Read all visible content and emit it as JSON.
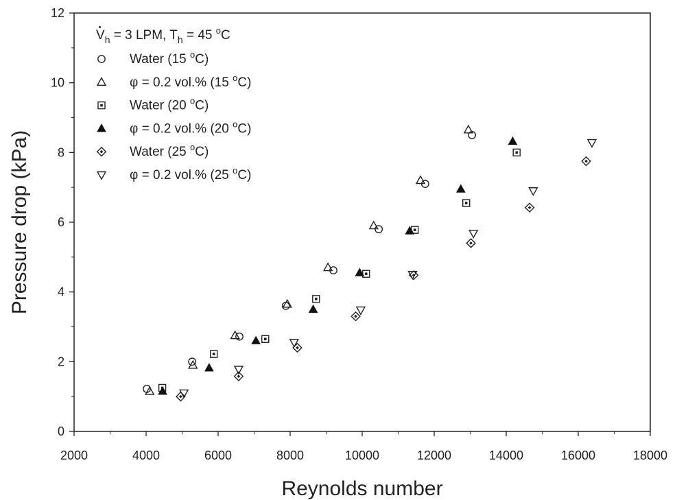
{
  "chart_data": {
    "type": "scatter",
    "xlabel": "Reynolds number",
    "ylabel": "Pressure drop (kPa)",
    "xlim": [
      2000,
      18000
    ],
    "ylim": [
      0,
      12
    ],
    "xticks": [
      2000,
      4000,
      6000,
      8000,
      10000,
      12000,
      14000,
      16000,
      18000
    ],
    "yticks": [
      0,
      2,
      4,
      6,
      8,
      10,
      12
    ],
    "xtick_labels": [
      "2000",
      "4000",
      "6000",
      "8000",
      "10000",
      "12000",
      "14000",
      "16000",
      "18000"
    ],
    "ytick_labels": [
      "0",
      "2",
      "4",
      "6",
      "8",
      "10",
      "12"
    ],
    "grid": false,
    "legend_position": "top-left",
    "legend_header": {
      "v": "V",
      "h1": "h",
      "mid": " = 3 LPM, T",
      "h2": "h",
      "eq": " = 45 ",
      "deg": "o",
      "unit": "C"
    },
    "series": [
      {
        "marker": "circle-open",
        "legend": {
          "pre": "Water (15 ",
          "deg": "o",
          "post": "C)"
        },
        "points": [
          [
            4020,
            1.22
          ],
          [
            5280,
            2.0
          ],
          [
            6590,
            2.72
          ],
          [
            7880,
            3.6
          ],
          [
            9200,
            4.62
          ],
          [
            10460,
            5.8
          ],
          [
            11750,
            7.1
          ],
          [
            13050,
            8.5
          ]
        ]
      },
      {
        "marker": "triangle-up-open",
        "legend": {
          "pre": "φ = 0.2 vol.% (15 ",
          "deg": "o",
          "post": "C)"
        },
        "points": [
          [
            4100,
            1.15
          ],
          [
            5300,
            1.9
          ],
          [
            6470,
            2.75
          ],
          [
            7920,
            3.65
          ],
          [
            9050,
            4.7
          ],
          [
            10320,
            5.9
          ],
          [
            11620,
            7.2
          ],
          [
            12950,
            8.65
          ]
        ]
      },
      {
        "marker": "square-dot",
        "legend": {
          "pre": "Water (20 ",
          "deg": "o",
          "post": "C)"
        },
        "points": [
          [
            4450,
            1.25
          ],
          [
            5880,
            2.22
          ],
          [
            7310,
            2.65
          ],
          [
            8720,
            3.8
          ],
          [
            10110,
            4.52
          ],
          [
            11460,
            5.78
          ],
          [
            12890,
            6.55
          ],
          [
            14290,
            8.0
          ]
        ]
      },
      {
        "marker": "triangle-up-filled",
        "legend": {
          "pre": "φ = 0.2 vol.% (20 ",
          "deg": "o",
          "post": "C)"
        },
        "points": [
          [
            4460,
            1.15
          ],
          [
            5750,
            1.82
          ],
          [
            7050,
            2.6
          ],
          [
            8640,
            3.5
          ],
          [
            9930,
            4.55
          ],
          [
            11320,
            5.75
          ],
          [
            12740,
            6.95
          ],
          [
            14180,
            8.32
          ]
        ]
      },
      {
        "marker": "diamond-dot",
        "legend": {
          "pre": "Water (25 ",
          "deg": "o",
          "post": "C)"
        },
        "points": [
          [
            4960,
            1.0
          ],
          [
            6570,
            1.58
          ],
          [
            8200,
            2.4
          ],
          [
            9820,
            3.3
          ],
          [
            11430,
            4.48
          ],
          [
            13020,
            5.4
          ],
          [
            14650,
            6.42
          ],
          [
            16220,
            7.75
          ]
        ]
      },
      {
        "marker": "triangle-down-open",
        "legend": {
          "pre": "φ = 0.2 vol.% (25 ",
          "deg": "o",
          "post": "C)"
        },
        "points": [
          [
            5050,
            1.1
          ],
          [
            6570,
            1.78
          ],
          [
            8110,
            2.55
          ],
          [
            9960,
            3.48
          ],
          [
            11400,
            4.5
          ],
          [
            13090,
            5.68
          ],
          [
            14750,
            6.9
          ],
          [
            16380,
            8.28
          ]
        ]
      }
    ]
  }
}
